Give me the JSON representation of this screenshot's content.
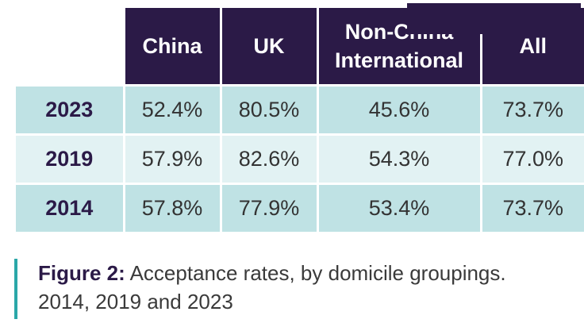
{
  "table": {
    "headers": {
      "china": "China",
      "uk": "UK",
      "non_china_line1": "Non-China",
      "non_china_line2": "International",
      "all": "All"
    },
    "rows": [
      {
        "year": "2023",
        "china": "52.4%",
        "uk": "80.5%",
        "non_china": "45.6%",
        "all": "73.7%"
      },
      {
        "year": "2019",
        "china": "57.9%",
        "uk": "82.6%",
        "non_china": "54.3%",
        "all": "77.0%"
      },
      {
        "year": "2014",
        "china": "57.8%",
        "uk": "77.9%",
        "non_china": "53.4%",
        "all": "73.7%"
      }
    ]
  },
  "caption": {
    "label": "Figure 2:",
    "text": " Acceptance rates, by domicile groupings.",
    "line2": "2014, 2019 and 2023"
  },
  "colors": {
    "header_bg": "#2b1a47",
    "row_dark": "#bfe2e4",
    "row_light": "#e2f2f3",
    "accent_bar": "#2aa7a8"
  }
}
